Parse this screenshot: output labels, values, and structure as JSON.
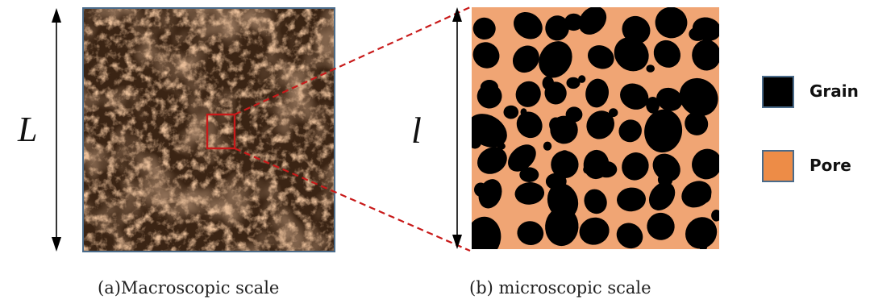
{
  "panel_a": {
    "scale_label": "L",
    "caption": "(a)Macroscopic scale"
  },
  "panel_b": {
    "scale_label": "l",
    "caption": "(b) microscopic scale"
  },
  "legend": {
    "items": [
      {
        "label": "Grain",
        "color": "#000000"
      },
      {
        "label": "Pore",
        "color": "#ed8c47"
      }
    ]
  },
  "colors": {
    "zoom_box": "#c81a1a",
    "zoom_lines": "#c81a1a",
    "panel_border": "#4a6b8a",
    "pore_fill": "#f0a574",
    "macro_base": "#3a2414"
  }
}
